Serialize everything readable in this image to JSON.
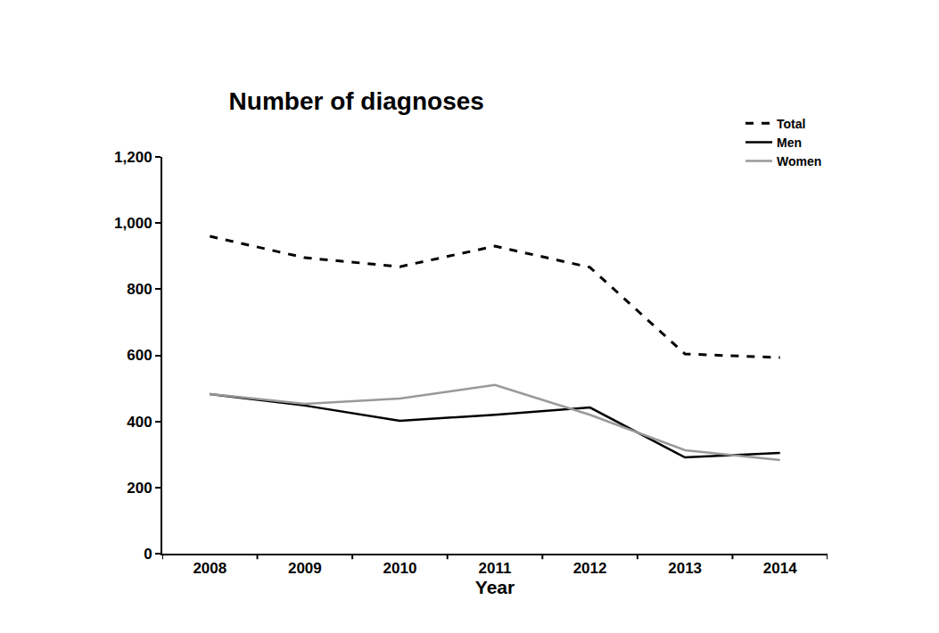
{
  "chart_data": {
    "type": "line",
    "title": "Number of diagnoses",
    "x_label": "Year",
    "categories": [
      "2008",
      "2009",
      "2010",
      "2011",
      "2012",
      "2013",
      "2014"
    ],
    "series": [
      {
        "name": "Total",
        "color": "#000000",
        "line_style": "dash",
        "values": [
          960,
          895,
          868,
          930,
          866,
          604,
          593
        ]
      },
      {
        "name": "Men",
        "color": "#000000",
        "line_style": "solid",
        "values": [
          483,
          448,
          402,
          420,
          442,
          291,
          305
        ]
      },
      {
        "name": "Women",
        "color": "#999999",
        "line_style": "solid",
        "values": [
          483,
          453,
          469,
          510,
          420,
          313,
          283
        ]
      }
    ],
    "ylim": [
      0,
      1200
    ],
    "yticks": [
      0,
      200,
      400,
      600,
      800,
      {
        "value": 1000,
        "label": "1,000"
      },
      {
        "value": 1200,
        "label": "1,200"
      }
    ],
    "grid": false,
    "legend": "top right"
  }
}
